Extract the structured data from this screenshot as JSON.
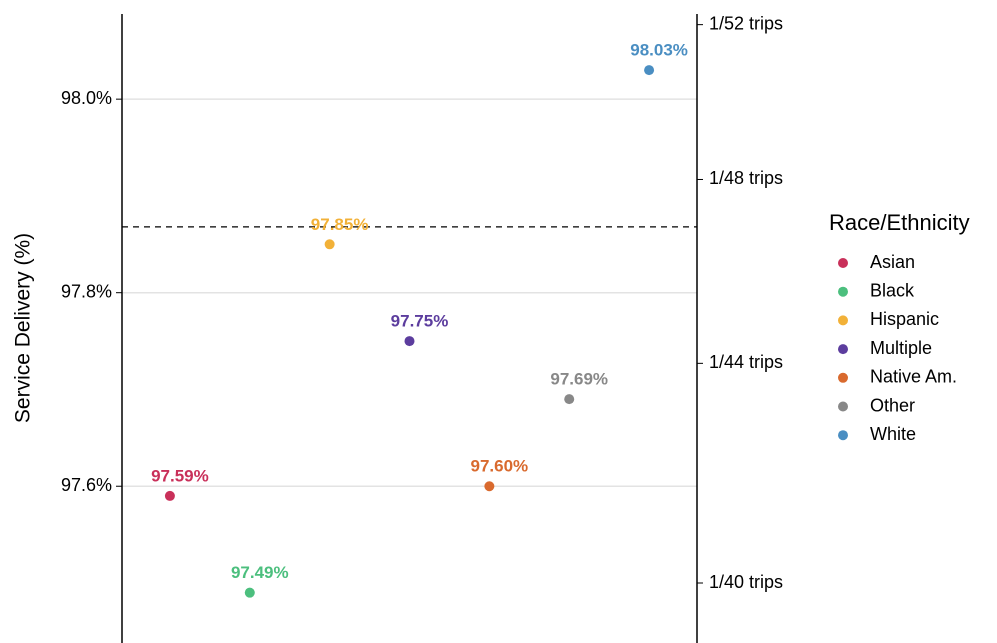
{
  "chart_data": {
    "type": "dot",
    "y_label": "Service Delivery (%)",
    "legend_title": "Race/Ethnicity",
    "categories": [
      "Asian",
      "Black",
      "Hispanic",
      "Multiple",
      "Native Am.",
      "Other",
      "White"
    ],
    "values": [
      97.59,
      97.49,
      97.85,
      97.75,
      97.6,
      97.69,
      98.03
    ],
    "value_labels": [
      "97.59%",
      "97.49%",
      "97.85%",
      "97.75%",
      "97.60%",
      "97.69%",
      "98.03%"
    ],
    "colors": [
      "#c9305a",
      "#4cbf7e",
      "#f2b138",
      "#5c3d9e",
      "#d96a2e",
      "#888888",
      "#4a8ec2"
    ],
    "reference_line": 97.868,
    "ylim": [
      97.438,
      98.088
    ],
    "yticks": [
      {
        "value": 97.6,
        "label": "97.6%"
      },
      {
        "value": 97.8,
        "label": "97.8%"
      },
      {
        "value": 98.0,
        "label": "98.0%"
      }
    ],
    "y2lim": [
      97.438,
      98.088
    ],
    "y2ticks": [
      {
        "value": 97.5,
        "label": "1/40 trips"
      },
      {
        "value": 97.727,
        "label": "1/44 trips"
      },
      {
        "value": 97.917,
        "label": "1/48 trips"
      },
      {
        "value": 98.077,
        "label": "1/52 trips"
      }
    ],
    "grid": true
  }
}
